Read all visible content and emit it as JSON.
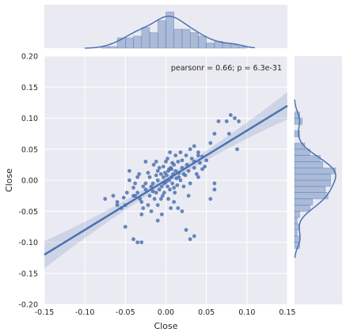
{
  "chart_data": {
    "type": "scatter",
    "title": "",
    "xlabel": "Close",
    "ylabel": "Close",
    "xlim": [
      -0.15,
      0.15
    ],
    "ylim": [
      -0.2,
      0.2
    ],
    "xticks": [
      "-0.15",
      "-0.10",
      "-0.05",
      "0.00",
      "0.05",
      "0.10",
      "0.15"
    ],
    "yticks": [
      "-0.20",
      "-0.15",
      "-0.10",
      "-0.05",
      "0.00",
      "0.05",
      "0.10",
      "0.15",
      "0.20"
    ],
    "annotation": "pearsonr = 0.66; p = 6.3e-31",
    "grid": true,
    "colors": {
      "series": "#4c72b0",
      "background": "#eaeaf2",
      "grid": "#ffffff"
    },
    "regression": {
      "slope": 0.8,
      "intercept": 0.0,
      "ci_halfwidth_edge": 0.022
    },
    "points": [
      [
        -0.075,
        -0.03
      ],
      [
        -0.06,
        -0.035
      ],
      [
        -0.055,
        -0.045
      ],
      [
        -0.05,
        -0.04
      ],
      [
        -0.048,
        -0.02
      ],
      [
        -0.045,
        0.015
      ],
      [
        -0.04,
        -0.012
      ],
      [
        -0.038,
        -0.025
      ],
      [
        -0.035,
        -0.02
      ],
      [
        -0.032,
        -0.03
      ],
      [
        -0.03,
        -0.035
      ],
      [
        -0.028,
        -0.045
      ],
      [
        -0.025,
        -0.015
      ],
      [
        -0.025,
        0.03
      ],
      [
        -0.022,
        -0.04
      ],
      [
        -0.02,
        -0.025
      ],
      [
        -0.018,
        -0.01
      ],
      [
        -0.016,
        -0.005
      ],
      [
        -0.014,
        -0.03
      ],
      [
        -0.012,
        -0.02
      ],
      [
        -0.01,
        0.0
      ],
      [
        -0.01,
        -0.04
      ],
      [
        -0.008,
        -0.015
      ],
      [
        -0.006,
        0.01
      ],
      [
        -0.005,
        -0.01
      ],
      [
        -0.004,
        -0.025
      ],
      [
        -0.003,
        0.005
      ],
      [
        -0.002,
        -0.005
      ],
      [
        -0.001,
        0.012
      ],
      [
        0.0,
        -0.003
      ],
      [
        0.001,
        0.008
      ],
      [
        0.002,
        -0.01
      ],
      [
        0.003,
        0.015
      ],
      [
        0.004,
        0.0
      ],
      [
        0.005,
        -0.015
      ],
      [
        0.006,
        0.02
      ],
      [
        0.007,
        0.005
      ],
      [
        0.008,
        -0.005
      ],
      [
        0.009,
        0.01
      ],
      [
        0.01,
        0.025
      ],
      [
        0.011,
        -0.02
      ],
      [
        0.012,
        0.015
      ],
      [
        0.013,
        0.003
      ],
      [
        0.014,
        -0.008
      ],
      [
        0.015,
        0.03
      ],
      [
        0.016,
        0.012
      ],
      [
        0.018,
        0.0
      ],
      [
        0.02,
        0.02
      ],
      [
        0.022,
        -0.01
      ],
      [
        0.024,
        0.008
      ],
      [
        0.026,
        0.025
      ],
      [
        0.028,
        0.015
      ],
      [
        0.03,
        -0.005
      ],
      [
        0.032,
        0.035
      ],
      [
        0.035,
        0.02
      ],
      [
        0.038,
        0.01
      ],
      [
        0.04,
        0.04
      ],
      [
        0.042,
        0.028
      ],
      [
        0.045,
        0.018
      ],
      [
        0.048,
        0.022
      ],
      [
        -0.015,
        0.025
      ],
      [
        -0.012,
        0.03
      ],
      [
        -0.008,
        0.02
      ],
      [
        0.002,
        0.035
      ],
      [
        0.005,
        0.045
      ],
      [
        0.012,
        0.04
      ],
      [
        0.018,
        0.045
      ],
      [
        0.025,
        0.04
      ],
      [
        0.03,
        0.05
      ],
      [
        0.035,
        0.055
      ],
      [
        0.04,
        0.045
      ],
      [
        0.055,
        0.06
      ],
      [
        0.06,
        0.075
      ],
      [
        0.065,
        0.095
      ],
      [
        0.075,
        0.095
      ],
      [
        0.08,
        0.105
      ],
      [
        0.085,
        0.1
      ],
      [
        0.09,
        0.095
      ],
      [
        0.078,
        0.075
      ],
      [
        0.088,
        0.05
      ],
      [
        -0.05,
        -0.075
      ],
      [
        -0.04,
        -0.095
      ],
      [
        -0.035,
        -0.1
      ],
      [
        -0.03,
        -0.1
      ],
      [
        -0.01,
        -0.065
      ],
      [
        -0.005,
        -0.055
      ],
      [
        0.025,
        -0.08
      ],
      [
        0.035,
        -0.09
      ],
      [
        0.03,
        -0.095
      ],
      [
        0.01,
        -0.035
      ],
      [
        0.015,
        -0.045
      ],
      [
        0.02,
        -0.05
      ],
      [
        0.06,
        -0.015
      ],
      [
        0.06,
        -0.005
      ],
      [
        0.055,
        -0.03
      ],
      [
        -0.02,
        0.005
      ],
      [
        -0.025,
        -0.005
      ],
      [
        -0.018,
        -0.05
      ],
      [
        -0.03,
        -0.055
      ],
      [
        -0.04,
        -0.025
      ],
      [
        -0.045,
        0.0
      ],
      [
        -0.035,
        0.005
      ],
      [
        -0.022,
        0.012
      ],
      [
        0.0,
        0.03
      ],
      [
        0.008,
        0.028
      ],
      [
        -0.006,
        -0.03
      ],
      [
        0.003,
        -0.03
      ],
      [
        0.006,
        -0.045
      ],
      [
        -0.002,
        -0.02
      ],
      [
        0.004,
        0.018
      ],
      [
        -0.012,
        0.008
      ],
      [
        -0.016,
        -0.018
      ],
      [
        0.01,
        -0.012
      ],
      [
        0.016,
        0.005
      ],
      [
        0.022,
        0.01
      ],
      [
        -0.028,
        -0.01
      ],
      [
        -0.033,
        0.01
      ],
      [
        -0.038,
        -0.005
      ],
      [
        0.028,
        -0.025
      ],
      [
        0.02,
        0.032
      ],
      [
        0.035,
        0.03
      ],
      [
        0.04,
        0.005
      ],
      [
        -0.01,
        0.015
      ],
      [
        -0.003,
        0.022
      ],
      [
        0.007,
        0.018
      ],
      [
        -0.06,
        -0.04
      ],
      [
        -0.065,
        -0.025
      ],
      [
        -0.052,
        -0.028
      ],
      [
        0.045,
        0.038
      ],
      [
        0.05,
        0.032
      ]
    ]
  }
}
